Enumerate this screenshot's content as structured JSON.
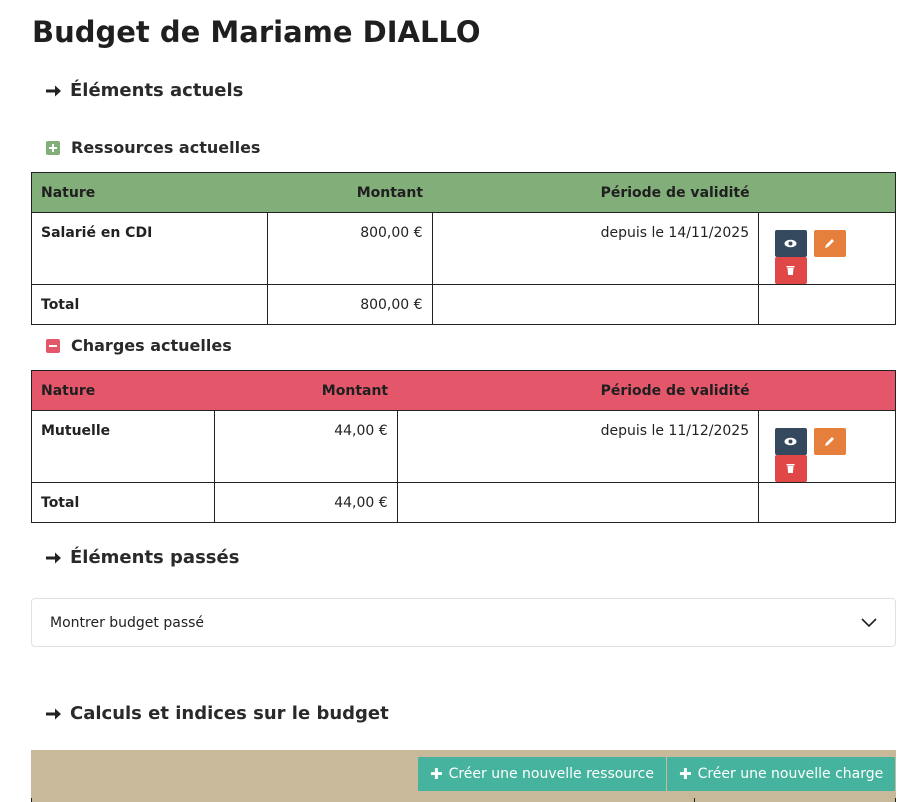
{
  "title": "Budget de Mariame DIALLO",
  "current": {
    "heading": "Éléments actuels",
    "resources": {
      "heading": "Ressources actuelles",
      "color": "#82ae7a",
      "icon": "plus-square-icon",
      "columns": [
        "Nature",
        "Montant",
        "Période de validité"
      ],
      "rows": [
        {
          "nature": "Salarié en CDI",
          "montant": "800,00 €",
          "periode": "depuis le 14/11/2025"
        }
      ],
      "total_label": "Total",
      "total_value": "800,00 €"
    },
    "charges": {
      "heading": "Charges actuelles",
      "color": "#e4576b",
      "icon": "minus-square-icon",
      "columns": [
        "Nature",
        "Montant",
        "Période de validité"
      ],
      "rows": [
        {
          "nature": "Mutuelle",
          "montant": "44,00 €",
          "periode": "depuis le 11/12/2025"
        }
      ],
      "total_label": "Total",
      "total_value": "44,00 €"
    }
  },
  "past": {
    "heading": "Éléments passés",
    "accordion_label": "Montrer budget passé"
  },
  "calculs": {
    "heading": "Calculs et indices sur le budget",
    "toolbar_color": "#c8b99a",
    "btn_new_resource": "Créer une nouvelle ressource",
    "btn_new_charge": "Créer une nouvelle charge"
  },
  "action_colors": {
    "view": "#34495e",
    "edit": "#e67e3c",
    "delete": "#e04848"
  }
}
